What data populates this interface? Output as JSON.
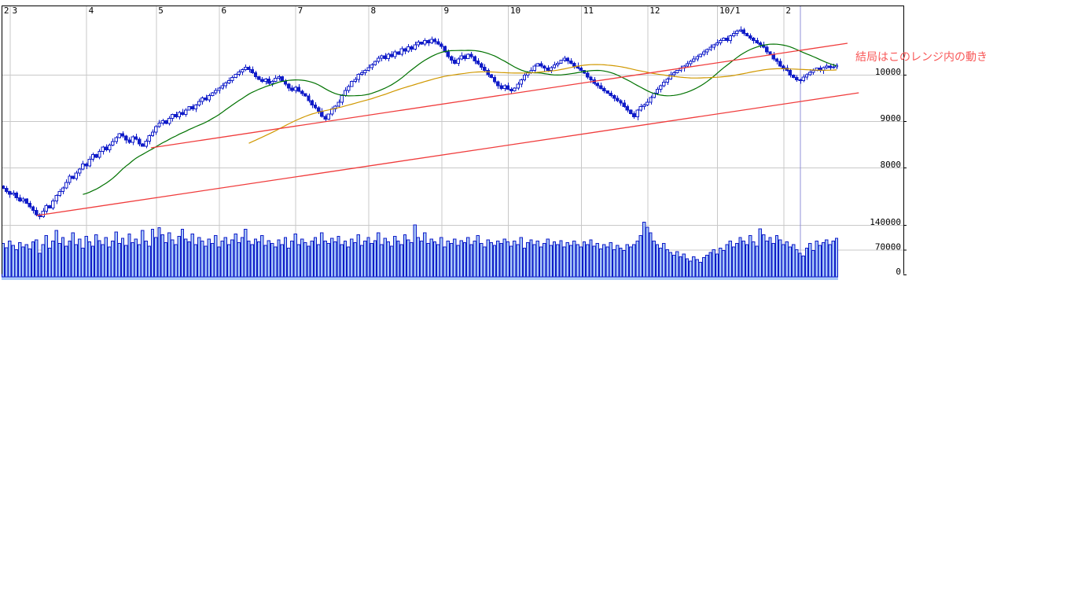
{
  "annotation": {
    "text": "結局はこのレンジ内の動き",
    "color": "#f85858"
  },
  "colors": {
    "background": "#ffffff",
    "grid": "#c8c8c8",
    "axis": "#000000",
    "candle_blue": "#101cc8",
    "volume_fill": "#a8c8f8",
    "ma25_green": "#007200",
    "ma75_orange": "#d09800",
    "trend_red": "#f03c3c",
    "marker_blue": "#9090d8",
    "label_black": "#000000"
  },
  "chart_data": {
    "type": "candlestick+volume",
    "title": "",
    "legend": "none",
    "grid": "on",
    "x_axis": {
      "ticks": [
        {
          "label": "2",
          "idx": -0.5
        },
        {
          "label": "3",
          "idx": 2
        },
        {
          "label": "4",
          "idx": 25
        },
        {
          "label": "5",
          "idx": 46
        },
        {
          "label": "6",
          "idx": 65
        },
        {
          "label": "7",
          "idx": 88
        },
        {
          "label": "8",
          "idx": 110
        },
        {
          "label": "9",
          "idx": 132
        },
        {
          "label": "10",
          "idx": 152
        },
        {
          "label": "11",
          "idx": 174
        },
        {
          "label": "12",
          "idx": 194
        },
        {
          "label": "10/1",
          "idx": 215
        },
        {
          "label": "2",
          "idx": 235
        }
      ]
    },
    "price_axis": {
      "ticks": [
        {
          "label": "10000",
          "price": 10000
        },
        {
          "label": "9000",
          "price": 9000
        },
        {
          "label": "8000",
          "price": 8000
        }
      ]
    },
    "volume_axis": {
      "ticks": [
        {
          "label": "140000",
          "k": 140
        },
        {
          "label": "70000",
          "k": 70
        },
        {
          "label": "0",
          "k": 0
        }
      ]
    },
    "closes": [
      7550,
      7480,
      7420,
      7450,
      7350,
      7280,
      7320,
      7230,
      7150,
      7080,
      6980,
      6940,
      7060,
      7180,
      7130,
      7280,
      7400,
      7480,
      7560,
      7680,
      7810,
      7760,
      7880,
      7970,
      8080,
      8030,
      8180,
      8280,
      8220,
      8350,
      8440,
      8380,
      8480,
      8560,
      8640,
      8730,
      8680,
      8590,
      8540,
      8660,
      8610,
      8510,
      8460,
      8570,
      8690,
      8760,
      8880,
      8960,
      9010,
      8950,
      9060,
      9140,
      9090,
      9190,
      9140,
      9240,
      9310,
      9260,
      9350,
      9420,
      9500,
      9460,
      9550,
      9610,
      9660,
      9710,
      9760,
      9820,
      9870,
      9940,
      10010,
      10060,
      10110,
      10160,
      10110,
      10040,
      9960,
      9900,
      9860,
      9910,
      9810,
      9860,
      9920,
      9960,
      9860,
      9800,
      9710,
      9660,
      9730,
      9640,
      9590,
      9540,
      9440,
      9350,
      9290,
      9210,
      9100,
      9040,
      9150,
      9260,
      9320,
      9410,
      9550,
      9660,
      9750,
      9860,
      9900,
      10010,
      10040,
      10090,
      10150,
      10210,
      10290,
      10360,
      10410,
      10350,
      10440,
      10390,
      10490,
      10440,
      10560,
      10510,
      10600,
      10550,
      10640,
      10700,
      10660,
      10740,
      10690,
      10760,
      10710,
      10660,
      10610,
      10490,
      10390,
      10310,
      10250,
      10340,
      10410,
      10350,
      10440,
      10390,
      10300,
      10240,
      10160,
      10090,
      10000,
      9940,
      9850,
      9760,
      9700,
      9760,
      9690,
      9650,
      9710,
      9800,
      9890,
      9990,
      10040,
      10090,
      10190,
      10240,
      10190,
      10140,
      10090,
      10150,
      10210,
      10250,
      10310,
      10360,
      10300,
      10250,
      10190,
      10140,
      10090,
      10030,
      9950,
      9890,
      9810,
      9760,
      9700,
      9650,
      9600,
      9550,
      9490,
      9440,
      9390,
      9310,
      9240,
      9160,
      9090,
      9240,
      9310,
      9350,
      9410,
      9510,
      9600,
      9690,
      9760,
      9840,
      9910,
      10000,
      10040,
      10090,
      10140,
      10190,
      10240,
      10290,
      10340,
      10390,
      10440,
      10490,
      10540,
      10590,
      10640,
      10690,
      10740,
      10790,
      10740,
      10840,
      10890,
      10940,
      10970,
      10890,
      10840,
      10790,
      10740,
      10690,
      10640,
      10590,
      10490,
      10440,
      10340,
      10290,
      10190,
      10140,
      10090,
      9990,
      9940,
      9890,
      9870,
      9950,
      10000,
      10050,
      10090,
      10140,
      10090,
      10150,
      10190,
      10150,
      10170,
      10200
    ],
    "volumes_thousands": [
      88,
      76,
      95,
      82,
      70,
      90,
      78,
      85,
      72,
      92,
      98,
      60,
      85,
      110,
      75,
      95,
      125,
      88,
      105,
      80,
      95,
      118,
      85,
      100,
      75,
      108,
      92,
      80,
      112,
      96,
      85,
      105,
      78,
      95,
      120,
      88,
      102,
      82,
      115,
      90,
      100,
      85,
      125,
      95,
      80,
      128,
      105,
      132,
      112,
      90,
      118,
      98,
      85,
      108,
      128,
      100,
      92,
      115,
      85,
      105,
      95,
      80,
      100,
      88,
      110,
      78,
      95,
      105,
      85,
      98,
      115,
      90,
      105,
      128,
      95,
      85,
      100,
      92,
      110,
      82,
      96,
      88,
      78,
      98,
      85,
      105,
      75,
      95,
      115,
      85,
      100,
      90,
      80,
      95,
      105,
      85,
      118,
      95,
      88,
      102,
      92,
      108,
      85,
      95,
      78,
      100,
      90,
      112,
      82,
      95,
      105,
      88,
      96,
      118,
      85,
      102,
      92,
      80,
      108,
      95,
      85,
      112,
      98,
      90,
      140,
      105,
      95,
      118,
      88,
      100,
      92,
      85,
      105,
      78,
      95,
      88,
      100,
      82,
      96,
      90,
      105,
      85,
      95,
      110,
      88,
      78,
      98,
      90,
      82,
      95,
      88,
      100,
      92,
      80,
      95,
      85,
      105,
      75,
      90,
      98,
      85,
      95,
      78,
      88,
      100,
      82,
      92,
      85,
      96,
      78,
      90,
      82,
      95,
      85,
      78,
      92,
      85,
      98,
      80,
      88,
      72,
      85,
      78,
      90,
      70,
      82,
      75,
      68,
      85,
      78,
      85,
      95,
      110,
      148,
      133,
      118,
      95,
      85,
      75,
      88,
      70,
      62,
      55,
      65,
      50,
      58,
      45,
      38,
      50,
      42,
      35,
      48,
      55,
      62,
      70,
      58,
      75,
      68,
      85,
      95,
      78,
      88,
      105,
      95,
      85,
      110,
      92,
      80,
      129,
      112,
      95,
      105,
      88,
      110,
      98,
      85,
      92,
      78,
      85,
      70,
      60,
      52,
      75,
      88,
      68,
      95,
      82,
      90,
      98,
      85,
      95,
      102
    ],
    "moving_averages": [
      {
        "name": "ma25",
        "window": 25
      },
      {
        "name": "ma75",
        "window": 75
      }
    ],
    "trend_channel": {
      "lines": [
        {
          "name": "lower",
          "from": {
            "idx": 10.2,
            "price": 6966
          },
          "to": {
            "idx": 257.7,
            "price": 9610
          }
        },
        {
          "name": "upper",
          "from": {
            "idx": 44.5,
            "price": 8424
          },
          "to": {
            "idx": 254.3,
            "price": 10678
          }
        }
      ]
    },
    "marker_line": {
      "idx": 240
    }
  }
}
